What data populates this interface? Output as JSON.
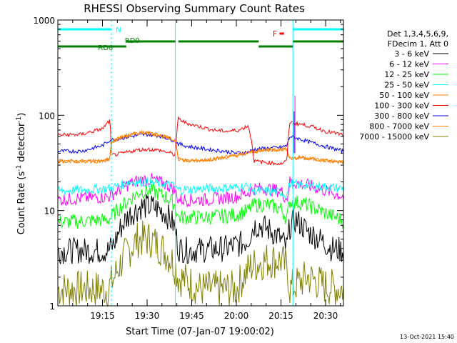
{
  "chart_data": {
    "type": "line",
    "title": "RHESSI Observing Summary Count Rates",
    "xlabel": "Start Time (07-Jan-07 19:00:02)",
    "ylabel_main": "Count Rate (s",
    "ylabel_sup1": "-1",
    "ylabel_mid": " detector",
    "ylabel_sup2": "-1",
    "ylabel_end": ")",
    "y_scale": "log",
    "ylim": [
      1,
      1000
    ],
    "xlim_minutes": [
      0,
      96
    ],
    "x_ticks": [
      {
        "minute": 15,
        "label": "19:15"
      },
      {
        "minute": 30,
        "label": "19:30"
      },
      {
        "minute": 45,
        "label": "19:45"
      },
      {
        "minute": 60,
        "label": "20:00"
      },
      {
        "minute": 75,
        "label": "20:15"
      },
      {
        "minute": 90,
        "label": "20:30"
      }
    ],
    "y_ticks": [
      {
        "value": 1,
        "label": "1"
      },
      {
        "value": 10,
        "label": "10"
      },
      {
        "value": 100,
        "label": "100"
      },
      {
        "value": 1000,
        "label": "1000"
      }
    ],
    "legend_header": [
      "Det 1,3,4,5,6,9,",
      "FDecim 1, Att 0"
    ],
    "series": [
      {
        "name": "3 - 6 keV",
        "color": "#000000",
        "x": [
          0,
          17,
          19,
          21,
          24,
          28,
          32,
          36,
          39,
          40.5,
          44,
          50,
          56,
          62,
          64,
          66,
          68,
          70,
          72,
          75,
          77,
          78,
          80,
          84,
          88,
          92,
          96
        ],
        "y": [
          3.8,
          3.8,
          4.5,
          6.5,
          9,
          11,
          11,
          9.5,
          7,
          4,
          3.8,
          3.9,
          4,
          4.5,
          5,
          7,
          7,
          6.5,
          6,
          5,
          4,
          6.8,
          8,
          6,
          5,
          4,
          3.8
        ]
      },
      {
        "name": "6 - 12 keV",
        "color": "#ff00ff",
        "x": [
          0,
          17,
          20,
          24,
          28,
          32,
          36,
          39,
          40.5,
          50,
          60,
          64,
          66,
          70,
          75,
          77,
          78,
          82,
          88,
          96
        ],
        "y": [
          13,
          14,
          16,
          19,
          21,
          21,
          19,
          17,
          13,
          13,
          14,
          15.5,
          17,
          17,
          16,
          13,
          20,
          19,
          17,
          14
        ]
      },
      {
        "name": "12 - 25 keV",
        "color": "#00ff00",
        "x": [
          0,
          17,
          20,
          24,
          28,
          32,
          36,
          39,
          40.5,
          50,
          60,
          64,
          66,
          70,
          75,
          77,
          78,
          82,
          88,
          96
        ],
        "y": [
          7.5,
          8,
          10,
          13,
          16,
          16,
          14,
          12,
          8.5,
          8.5,
          9,
          10,
          11.5,
          11.5,
          10.5,
          8,
          12.5,
          12,
          10,
          7.8
        ]
      },
      {
        "name": "25 - 50 keV",
        "color": "#00ffff",
        "x": [
          0,
          17,
          20,
          24,
          28,
          32,
          36,
          39,
          40.5,
          50,
          60,
          64,
          66,
          70,
          75,
          77,
          78,
          82,
          88,
          96
        ],
        "y": [
          16,
          17,
          18,
          20,
          20,
          19.5,
          19,
          18,
          16.5,
          17,
          17.5,
          18,
          16,
          16,
          15.5,
          14.5,
          19,
          18.5,
          18,
          17
        ]
      },
      {
        "name": "50 - 100 keV",
        "color": "#ff7f00",
        "x": [
          0,
          15,
          17.5,
          18,
          21,
          25,
          29,
          33,
          37,
          39.5,
          40.5,
          44,
          50,
          56,
          60,
          64,
          66,
          70,
          75,
          77,
          78,
          82,
          88,
          96
        ],
        "y": [
          33,
          33,
          35,
          52,
          58,
          63,
          66,
          63,
          58,
          54,
          35,
          33,
          34,
          36,
          38,
          40,
          42,
          43,
          44,
          44,
          35,
          36,
          34,
          32
        ]
      },
      {
        "name": "100 - 300 keV",
        "color": "#ff0000",
        "x": [
          0,
          8,
          15,
          17.5,
          18,
          22,
          26,
          30,
          34,
          38,
          39.5,
          40.5,
          43,
          47,
          52,
          57,
          61,
          64,
          66,
          70,
          75,
          77,
          78,
          80,
          84,
          90,
          96
        ],
        "y": [
          62,
          63,
          72,
          88,
          38,
          40,
          43,
          44,
          43,
          40,
          38,
          92,
          83,
          77,
          70,
          68,
          70,
          78,
          33,
          32,
          31,
          33,
          85,
          82,
          78,
          68,
          62
        ]
      },
      {
        "name": "300 - 800 keV",
        "color": "#0000ff",
        "x": [
          0,
          8,
          15,
          17.5,
          18,
          22,
          26,
          30,
          34,
          38,
          39.5,
          40.5,
          44,
          50,
          56,
          60,
          64,
          66,
          70,
          75,
          77,
          78,
          80,
          84,
          90,
          96
        ],
        "y": [
          42,
          42,
          48,
          55,
          55,
          58,
          61,
          63,
          61,
          56,
          54,
          50,
          47,
          44,
          42,
          40,
          41,
          44,
          45,
          46,
          48,
          60,
          58,
          53,
          47,
          42
        ]
      },
      {
        "name": "800 - 7000 keV",
        "color": "#ff7f00",
        "x": [
          0,
          15,
          17.5,
          18,
          21,
          25,
          29,
          33,
          37,
          39.5,
          40.5,
          44,
          50,
          56,
          60,
          64,
          66,
          70,
          75,
          77,
          78,
          82,
          88,
          96
        ],
        "y": [
          33,
          33,
          35,
          52,
          58,
          63,
          66,
          63,
          58,
          54,
          35,
          33,
          34,
          36,
          38,
          40,
          42,
          43,
          44,
          44,
          35,
          36,
          34,
          32
        ]
      },
      {
        "name": "7000 - 15000 keV",
        "color": "#808000",
        "x": [
          0,
          17,
          19,
          23,
          27,
          31,
          35,
          39,
          40.5,
          48,
          60,
          65,
          70,
          75,
          77,
          78,
          84,
          90,
          96
        ],
        "y": [
          1.5,
          1.5,
          2,
          3.5,
          5,
          5,
          4,
          2.8,
          2,
          1.5,
          1.5,
          2.6,
          3,
          3,
          2.5,
          1.5,
          2,
          1.6,
          1.5
        ]
      }
    ],
    "annotations": {
      "N": {
        "label": "N",
        "color": "#00ffff",
        "segments": [
          [
            0,
            18
          ],
          [
            79,
            96
          ]
        ]
      },
      "F": {
        "label": "F",
        "color": "#ff0000",
        "segments": [
          [
            74.5,
            76
          ]
        ]
      },
      "RD0": {
        "label": "RD0",
        "color": "#008000",
        "segments": [
          [
            23,
            39.5
          ],
          [
            40.5,
            67.5
          ],
          [
            79,
            96
          ]
        ]
      },
      "RD6": {
        "label": "RD6",
        "color": "#008000",
        "segments": [
          [
            0,
            23
          ],
          [
            67.5,
            79
          ]
        ]
      },
      "dashed_lines": [
        18,
        96
      ],
      "solid_lines": [
        39.5,
        79
      ]
    },
    "footer_timestamp": "13-Oct-2021 15:40",
    "grid": false,
    "legend_position": "right"
  }
}
